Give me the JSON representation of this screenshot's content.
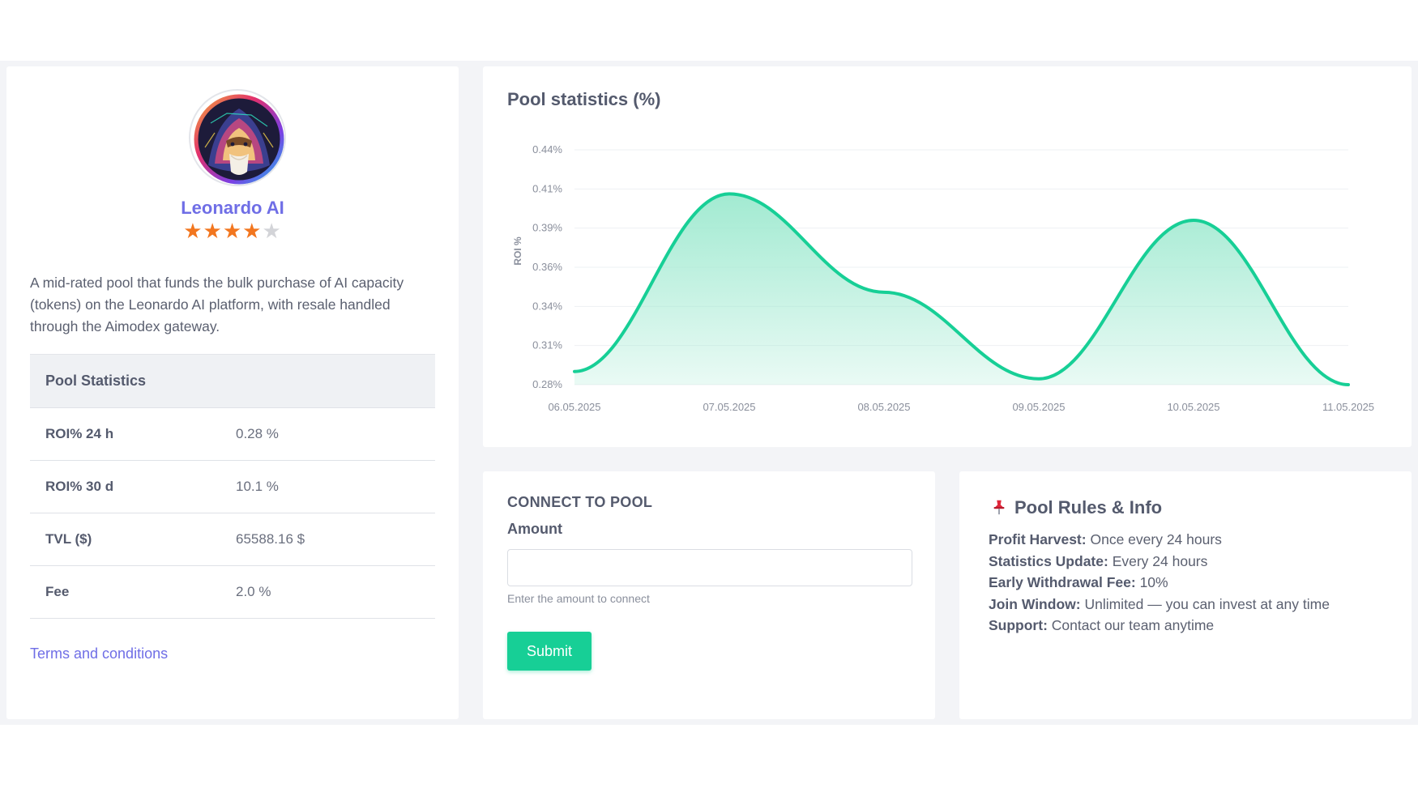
{
  "pool": {
    "name": "Leonardo AI",
    "rating": 4,
    "rating_max": 5,
    "description": "A mid-rated pool that funds the bulk purchase of AI capacity (tokens) on the Leonardo AI platform, with resale handled through the Aimodex gateway."
  },
  "stats": {
    "header": "Pool Statistics",
    "rows": [
      {
        "label": "ROI% 24 h",
        "value": "0.28 %"
      },
      {
        "label": "ROI% 30 d",
        "value": "10.1 %"
      },
      {
        "label": "TVL ($)",
        "value": "65588.16 $"
      },
      {
        "label": "Fee",
        "value": "2.0 %"
      }
    ]
  },
  "terms_link": "Terms and conditions",
  "chart_card": {
    "title": "Pool statistics (%)"
  },
  "chart_data": {
    "type": "area",
    "title": "Pool statistics (%)",
    "xlabel": "",
    "ylabel": "ROI %",
    "x": [
      "06.05.2025",
      "07.05.2025",
      "08.05.2025",
      "09.05.2025",
      "10.05.2025",
      "11.05.2025"
    ],
    "y_ticks": [
      "0.44%",
      "0.41%",
      "0.39%",
      "0.36%",
      "0.34%",
      "0.31%",
      "0.28%"
    ],
    "ylim": [
      0.28,
      0.44
    ],
    "series": [
      {
        "values": [
          0.289,
          0.41,
          0.343,
          0.284,
          0.392,
          0.28
        ]
      }
    ],
    "grid": true,
    "colors": {
      "line": "#17cf96",
      "fill": "#9de9cf"
    }
  },
  "connect": {
    "title": "CONNECT TO POOL",
    "amount_label": "Amount",
    "input_value": "",
    "input_placeholder": "",
    "help": "Enter the amount to connect",
    "submit": "Submit"
  },
  "rules": {
    "title": "Pool Rules & Info",
    "icon": "pushpin-icon",
    "items": [
      {
        "label": "Profit Harvest:",
        "value": "Once every 24 hours"
      },
      {
        "label": "Statistics Update:",
        "value": "Every 24 hours"
      },
      {
        "label": "Early Withdrawal Fee:",
        "value": "10%"
      },
      {
        "label": "Join Window:",
        "value": "Unlimited — you can invest at any time"
      },
      {
        "label": "Support:",
        "value": "Contact our team anytime"
      }
    ]
  },
  "colors": {
    "accent": "#6f6ee6",
    "primary": "#17cf96",
    "star": "#f2761f"
  }
}
